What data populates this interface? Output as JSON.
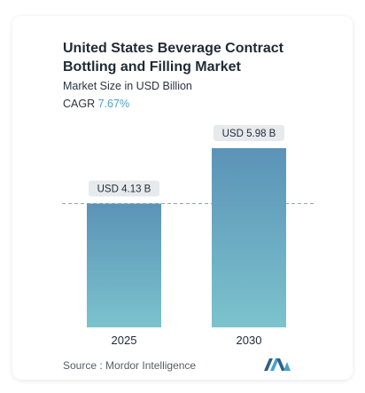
{
  "header": {
    "title": "United States Beverage Contract Bottling and Filling Market",
    "subtitle": "Market Size in USD Billion",
    "cagr_label": "CAGR",
    "cagr_value": "7.67%"
  },
  "footer": {
    "source_label": "Source :",
    "source_name": "Mordor Intelligence"
  },
  "colors": {
    "bar_top": "#5b93b7",
    "bar_bottom": "#7cc3cd",
    "accent": "#4aa3c7"
  },
  "chart_data": {
    "type": "bar",
    "categories": [
      "2025",
      "2030"
    ],
    "values": [
      4.13,
      5.98
    ],
    "data_labels": [
      "USD 4.13 B",
      "USD 5.98 B"
    ],
    "title": "United States Beverage Contract Bottling and Filling Market",
    "xlabel": "",
    "ylabel": "",
    "ylim": [
      0,
      5.98
    ],
    "grid": false,
    "reference_line": 4.13
  }
}
